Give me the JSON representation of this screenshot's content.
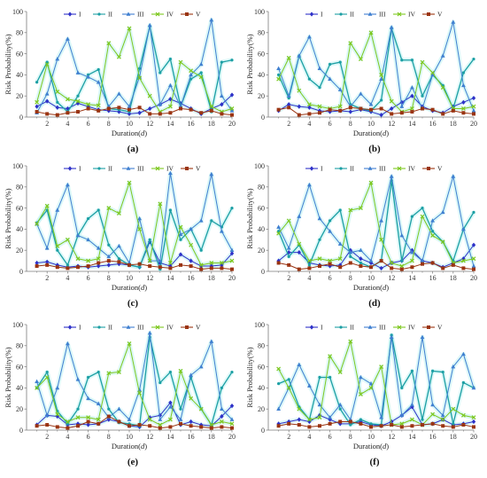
{
  "colors": {
    "I": "#2E31C8",
    "II": "#1C9FA4",
    "III": "#3F7FD0",
    "IV": "#7DC81F",
    "V": "#9A3412",
    "glow": "#BFF3F3",
    "gridline": "#cfcfcf",
    "axis": "#7a7a7a"
  },
  "chart_data": [
    {
      "type": "line",
      "label": "(a)",
      "xlabel": "Duration",
      "xlabel_unit": "d",
      "ylabel": "Risk Probability(%)",
      "xlim": [
        0,
        20
      ],
      "ylim": [
        0,
        100
      ],
      "x_ticks": [
        2,
        4,
        6,
        8,
        10,
        12,
        14,
        16,
        18,
        20
      ],
      "y_ticks": [
        0,
        20,
        40,
        60,
        80,
        100
      ],
      "legend": [
        "I",
        "II",
        "III",
        "IV",
        "V"
      ],
      "legend_position": "top-center",
      "x": [
        1,
        2,
        3,
        4,
        5,
        6,
        7,
        8,
        9,
        10,
        11,
        12,
        13,
        14,
        15,
        16,
        17,
        18,
        19,
        20
      ],
      "series": [
        {
          "name": "I",
          "values": [
            10,
            15,
            9,
            8,
            13,
            10,
            7,
            6,
            5,
            3,
            4,
            8,
            12,
            17,
            13,
            8,
            3,
            8,
            12,
            21
          ]
        },
        {
          "name": "II",
          "values": [
            33,
            52,
            14,
            5,
            20,
            40,
            45,
            8,
            7,
            5,
            46,
            86,
            42,
            55,
            10,
            36,
            42,
            5,
            52,
            54
          ]
        },
        {
          "name": "III",
          "values": [
            4,
            22,
            55,
            74,
            42,
            38,
            33,
            10,
            22,
            10,
            38,
            87,
            12,
            30,
            10,
            40,
            50,
            92,
            20,
            6
          ]
        },
        {
          "name": "IV",
          "values": [
            14,
            50,
            24,
            17,
            15,
            12,
            11,
            70,
            57,
            84,
            37,
            20,
            5,
            10,
            52,
            44,
            38,
            10,
            5,
            8
          ]
        },
        {
          "name": "V",
          "values": [
            5,
            3,
            2,
            4,
            5,
            8,
            6,
            8,
            9,
            7,
            9,
            3,
            3,
            4,
            8,
            7,
            4,
            6,
            3,
            2
          ]
        }
      ]
    },
    {
      "type": "line",
      "label": "(b)",
      "xlabel": "Duration",
      "xlabel_unit": "d",
      "ylabel": "Risk Probability(%)",
      "xlim": [
        0,
        20
      ],
      "ylim": [
        0,
        100
      ],
      "x_ticks": [
        2,
        4,
        6,
        8,
        10,
        12,
        14,
        16,
        18,
        20
      ],
      "y_ticks": [
        0,
        20,
        40,
        60,
        80,
        100
      ],
      "legend": [
        "I",
        "II",
        "III",
        "IV",
        "V"
      ],
      "legend_position": "top-center",
      "x": [
        1,
        2,
        3,
        4,
        5,
        6,
        7,
        8,
        9,
        10,
        11,
        12,
        13,
        14,
        15,
        16,
        17,
        18,
        19,
        20
      ],
      "series": [
        {
          "name": "I",
          "values": [
            6,
            12,
            10,
            9,
            6,
            5,
            6,
            5,
            7,
            5,
            2,
            8,
            14,
            20,
            10,
            6,
            4,
            10,
            14,
            18
          ]
        },
        {
          "name": "II",
          "values": [
            40,
            18,
            58,
            36,
            28,
            50,
            52,
            12,
            8,
            6,
            16,
            84,
            54,
            54,
            20,
            40,
            30,
            8,
            42,
            55
          ]
        },
        {
          "name": "III",
          "values": [
            46,
            20,
            58,
            76,
            46,
            36,
            26,
            10,
            22,
            12,
            36,
            85,
            10,
            28,
            8,
            40,
            58,
            90,
            30,
            6
          ]
        },
        {
          "name": "IV",
          "values": [
            36,
            56,
            25,
            12,
            10,
            8,
            10,
            70,
            55,
            80,
            40,
            15,
            5,
            8,
            52,
            42,
            28,
            8,
            8,
            10
          ]
        },
        {
          "name": "V",
          "values": [
            7,
            9,
            2,
            3,
            4,
            7,
            6,
            9,
            8,
            7,
            8,
            3,
            4,
            5,
            8,
            7,
            3,
            6,
            4,
            3
          ]
        }
      ]
    },
    {
      "type": "line",
      "label": "(c)",
      "xlabel": "Duration",
      "xlabel_unit": "d",
      "ylabel": "Risk Probability(%)",
      "xlim": [
        0,
        20
      ],
      "ylim": [
        0,
        100
      ],
      "x_ticks": [
        2,
        4,
        6,
        8,
        10,
        12,
        14,
        16,
        18,
        20
      ],
      "y_ticks": [
        0,
        20,
        40,
        60,
        80,
        100
      ],
      "legend": [
        "I",
        "II",
        "III",
        "IV",
        "V"
      ],
      "legend_position": "top-center",
      "x": [
        1,
        2,
        3,
        4,
        5,
        6,
        7,
        8,
        9,
        10,
        11,
        12,
        13,
        14,
        15,
        16,
        17,
        18,
        19,
        20
      ],
      "series": [
        {
          "name": "I",
          "values": [
            8,
            9,
            6,
            4,
            5,
            4,
            5,
            6,
            7,
            6,
            4,
            28,
            8,
            5,
            16,
            10,
            5,
            5,
            6,
            17
          ]
        },
        {
          "name": "II",
          "values": [
            46,
            58,
            20,
            6,
            34,
            50,
            58,
            25,
            12,
            6,
            4,
            30,
            2,
            58,
            30,
            40,
            20,
            48,
            42,
            60
          ]
        },
        {
          "name": "III",
          "values": [
            45,
            22,
            58,
            82,
            34,
            30,
            22,
            14,
            24,
            8,
            50,
            10,
            10,
            93,
            35,
            40,
            48,
            92,
            38,
            20
          ]
        },
        {
          "name": "IV",
          "values": [
            45,
            62,
            24,
            30,
            12,
            10,
            12,
            60,
            55,
            84,
            40,
            10,
            64,
            8,
            42,
            25,
            6,
            8,
            8,
            10
          ]
        },
        {
          "name": "V",
          "values": [
            5,
            6,
            4,
            3,
            4,
            5,
            8,
            10,
            9,
            6,
            7,
            5,
            4,
            3,
            6,
            5,
            2,
            3,
            3,
            2
          ]
        }
      ]
    },
    {
      "type": "line",
      "label": "(d)",
      "xlabel": "Duration",
      "xlabel_unit": "d",
      "ylabel": "Risk Probability(%)",
      "xlim": [
        0,
        20
      ],
      "ylim": [
        0,
        100
      ],
      "x_ticks": [
        2,
        4,
        6,
        8,
        10,
        12,
        14,
        16,
        18,
        20
      ],
      "y_ticks": [
        0,
        20,
        40,
        60,
        80,
        100
      ],
      "legend": [
        "I",
        "II",
        "III",
        "IV",
        "V"
      ],
      "legend_position": "top-center",
      "x": [
        1,
        2,
        3,
        4,
        5,
        6,
        7,
        8,
        9,
        10,
        11,
        12,
        13,
        14,
        15,
        16,
        17,
        18,
        19,
        20
      ],
      "series": [
        {
          "name": "I",
          "values": [
            10,
            18,
            18,
            8,
            6,
            5,
            6,
            20,
            12,
            8,
            3,
            8,
            10,
            20,
            10,
            8,
            4,
            8,
            12,
            25
          ]
        },
        {
          "name": "II",
          "values": [
            38,
            14,
            25,
            6,
            30,
            48,
            58,
            14,
            8,
            4,
            10,
            86,
            10,
            52,
            60,
            38,
            28,
            10,
            40,
            56
          ]
        },
        {
          "name": "III",
          "values": [
            42,
            22,
            52,
            82,
            50,
            38,
            26,
            18,
            20,
            10,
            48,
            90,
            34,
            18,
            10,
            48,
            56,
            90,
            40,
            5
          ]
        },
        {
          "name": "IV",
          "values": [
            36,
            48,
            26,
            10,
            12,
            10,
            12,
            58,
            60,
            84,
            30,
            8,
            5,
            10,
            52,
            34,
            28,
            8,
            10,
            12
          ]
        },
        {
          "name": "V",
          "values": [
            8,
            6,
            2,
            3,
            5,
            7,
            4,
            8,
            5,
            4,
            10,
            3,
            2,
            4,
            7,
            8,
            3,
            6,
            3,
            2
          ]
        }
      ]
    },
    {
      "type": "line",
      "label": "(e)",
      "xlabel": "Duration",
      "xlabel_unit": "d",
      "ylabel": "Risk Probability(%)",
      "xlim": [
        0,
        20
      ],
      "ylim": [
        0,
        100
      ],
      "x_ticks": [
        2,
        4,
        6,
        8,
        10,
        12,
        14,
        16,
        18,
        20
      ],
      "y_ticks": [
        0,
        20,
        40,
        60,
        80,
        100
      ],
      "legend": [
        "I",
        "II",
        "III",
        "IV",
        "V"
      ],
      "legend_position": "top-center",
      "x": [
        1,
        2,
        3,
        4,
        5,
        6,
        7,
        8,
        9,
        10,
        11,
        12,
        13,
        14,
        15,
        16,
        17,
        18,
        19,
        20
      ],
      "series": [
        {
          "name": "I",
          "values": [
            5,
            14,
            13,
            5,
            6,
            5,
            6,
            10,
            8,
            4,
            3,
            12,
            14,
            26,
            5,
            8,
            5,
            4,
            13,
            23
          ]
        },
        {
          "name": "II",
          "values": [
            40,
            55,
            18,
            6,
            20,
            50,
            55,
            20,
            7,
            6,
            4,
            88,
            45,
            55,
            20,
            50,
            20,
            5,
            40,
            55
          ]
        },
        {
          "name": "III",
          "values": [
            46,
            14,
            40,
            82,
            48,
            30,
            25,
            12,
            20,
            10,
            38,
            92,
            10,
            22,
            10,
            52,
            60,
            84,
            20,
            10
          ]
        },
        {
          "name": "IV",
          "values": [
            40,
            50,
            15,
            8,
            12,
            12,
            10,
            54,
            55,
            82,
            35,
            10,
            5,
            10,
            56,
            30,
            20,
            5,
            8,
            6
          ]
        },
        {
          "name": "V",
          "values": [
            4,
            5,
            3,
            2,
            4,
            8,
            6,
            13,
            8,
            4,
            5,
            4,
            2,
            3,
            6,
            4,
            3,
            2,
            3,
            2
          ]
        }
      ]
    },
    {
      "type": "line",
      "label": "(f)",
      "xlabel": "Duration",
      "xlabel_unit": "d",
      "ylabel": "Risk Probability(%)",
      "xlim": [
        0,
        20
      ],
      "ylim": [
        0,
        100
      ],
      "x_ticks": [
        2,
        4,
        6,
        8,
        10,
        12,
        14,
        16,
        18,
        20
      ],
      "y_ticks": [
        0,
        20,
        40,
        60,
        80,
        100
      ],
      "legend": [
        "I",
        "II",
        "III",
        "IV",
        "V"
      ],
      "legend_position": "top-center",
      "x": [
        1,
        2,
        3,
        4,
        5,
        6,
        7,
        8,
        9,
        10,
        11,
        12,
        13,
        14,
        15,
        16,
        17,
        18,
        19,
        20
      ],
      "series": [
        {
          "name": "I",
          "values": [
            6,
            8,
            10,
            8,
            14,
            10,
            6,
            6,
            8,
            5,
            4,
            8,
            14,
            22,
            5,
            6,
            10,
            5,
            6,
            8
          ]
        },
        {
          "name": "II",
          "values": [
            44,
            48,
            22,
            10,
            50,
            50,
            20,
            5,
            10,
            6,
            5,
            90,
            40,
            56,
            10,
            56,
            55,
            6,
            45,
            40
          ]
        },
        {
          "name": "III",
          "values": [
            20,
            40,
            62,
            42,
            24,
            12,
            24,
            10,
            50,
            44,
            12,
            88,
            14,
            24,
            88,
            24,
            14,
            60,
            72,
            40
          ]
        },
        {
          "name": "IV",
          "values": [
            58,
            40,
            20,
            10,
            12,
            70,
            55,
            84,
            34,
            40,
            60,
            5,
            6,
            10,
            5,
            15,
            10,
            20,
            14,
            12
          ]
        },
        {
          "name": "V",
          "values": [
            4,
            6,
            5,
            3,
            4,
            6,
            8,
            8,
            6,
            3,
            4,
            5,
            3,
            4,
            5,
            6,
            4,
            3,
            5,
            3
          ]
        }
      ]
    }
  ]
}
